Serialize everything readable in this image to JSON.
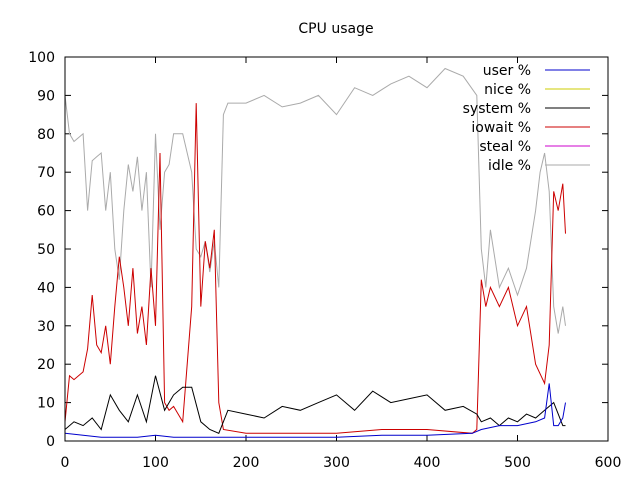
{
  "chart_data": {
    "type": "line",
    "title": "CPU usage",
    "xlabel": "",
    "ylabel": "",
    "xlim": [
      0,
      600
    ],
    "ylim": [
      0,
      100
    ],
    "xticks": [
      0,
      100,
      200,
      300,
      400,
      500,
      600
    ],
    "yticks": [
      0,
      10,
      20,
      30,
      40,
      50,
      60,
      70,
      80,
      90,
      100
    ],
    "grid": false,
    "legend": "top-right",
    "series": [
      {
        "name": "user %",
        "color": "#0000cc",
        "x": [
          0,
          20,
          40,
          60,
          80,
          100,
          120,
          140,
          160,
          180,
          200,
          250,
          300,
          350,
          400,
          450,
          460,
          480,
          500,
          520,
          530,
          535,
          540,
          545,
          550,
          553
        ],
        "y": [
          2,
          1.5,
          1,
          1,
          1,
          1.5,
          1,
          1,
          1,
          1,
          1,
          1,
          1,
          1.5,
          1.5,
          2,
          3,
          4,
          4,
          5,
          6,
          15,
          4,
          4,
          6,
          10
        ]
      },
      {
        "name": "nice %",
        "color": "#cccc00",
        "x": [
          0,
          553
        ],
        "y": [
          0,
          0
        ]
      },
      {
        "name": "system %",
        "color": "#000000",
        "x": [
          0,
          10,
          20,
          30,
          40,
          50,
          60,
          70,
          80,
          90,
          100,
          110,
          120,
          130,
          140,
          150,
          160,
          170,
          180,
          200,
          220,
          240,
          260,
          280,
          300,
          320,
          340,
          360,
          380,
          400,
          420,
          440,
          455,
          460,
          470,
          480,
          490,
          500,
          510,
          520,
          530,
          540,
          550,
          553
        ],
        "y": [
          3,
          5,
          4,
          6,
          3,
          12,
          8,
          5,
          12,
          5,
          17,
          8,
          12,
          14,
          14,
          5,
          3,
          2,
          8,
          7,
          6,
          9,
          8,
          10,
          12,
          8,
          13,
          10,
          11,
          12,
          8,
          9,
          7,
          5,
          6,
          4,
          6,
          5,
          7,
          6,
          8,
          10,
          4,
          4
        ]
      },
      {
        "name": "iowait %",
        "color": "#cc0000",
        "x": [
          0,
          5,
          10,
          20,
          25,
          30,
          35,
          40,
          45,
          50,
          55,
          60,
          65,
          70,
          75,
          80,
          85,
          90,
          95,
          100,
          105,
          110,
          115,
          120,
          130,
          140,
          145,
          150,
          155,
          160,
          165,
          170,
          175,
          200,
          250,
          300,
          350,
          400,
          450,
          455,
          460,
          465,
          470,
          480,
          490,
          500,
          510,
          520,
          530,
          535,
          540,
          545,
          550,
          553
        ],
        "y": [
          5,
          17,
          16,
          18,
          24,
          38,
          25,
          23,
          30,
          20,
          35,
          48,
          40,
          30,
          45,
          28,
          35,
          25,
          45,
          30,
          75,
          10,
          8,
          9,
          5,
          35,
          88,
          35,
          52,
          45,
          55,
          10,
          3,
          2,
          2,
          2,
          3,
          3,
          2,
          3,
          42,
          35,
          40,
          35,
          40,
          30,
          35,
          20,
          15,
          25,
          65,
          60,
          67,
          54
        ]
      },
      {
        "name": "steal %",
        "color": "#cc00cc",
        "x": [
          0,
          553
        ],
        "y": [
          0,
          0
        ]
      },
      {
        "name": "idle %",
        "color": "#aaaaaa",
        "x": [
          0,
          5,
          10,
          20,
          25,
          30,
          35,
          40,
          45,
          50,
          55,
          60,
          65,
          70,
          75,
          80,
          85,
          90,
          95,
          100,
          105,
          110,
          115,
          120,
          130,
          140,
          145,
          150,
          155,
          160,
          165,
          170,
          175,
          180,
          200,
          220,
          240,
          260,
          280,
          300,
          320,
          340,
          360,
          380,
          400,
          420,
          440,
          455,
          460,
          465,
          470,
          480,
          490,
          500,
          510,
          520,
          525,
          530,
          535,
          540,
          545,
          550,
          553
        ],
        "y": [
          90,
          80,
          78,
          80,
          60,
          73,
          74,
          75,
          60,
          70,
          50,
          42,
          60,
          72,
          65,
          74,
          60,
          70,
          40,
          80,
          55,
          70,
          72,
          80,
          80,
          70,
          50,
          48,
          52,
          44,
          52,
          40,
          85,
          88,
          88,
          90,
          87,
          88,
          90,
          85,
          92,
          90,
          93,
          95,
          92,
          97,
          95,
          90,
          50,
          40,
          55,
          40,
          45,
          38,
          45,
          60,
          70,
          75,
          65,
          35,
          28,
          35,
          30
        ]
      }
    ]
  }
}
